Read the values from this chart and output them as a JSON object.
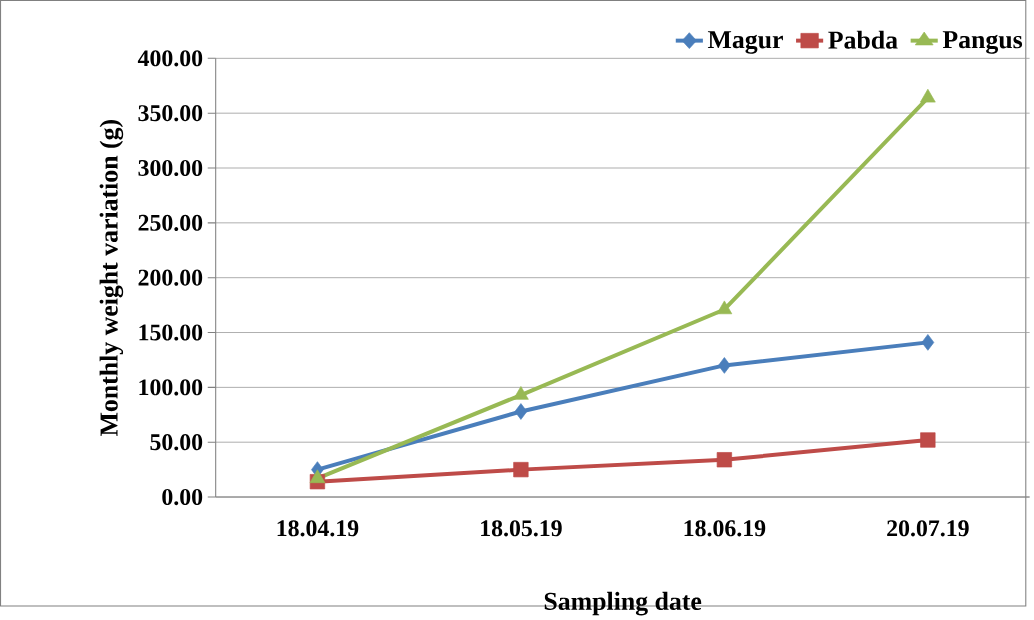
{
  "chart_data": {
    "type": "line",
    "xlabel": "Sampling date",
    "ylabel": "Monthly weight variation (g)",
    "categories": [
      "18.04.19",
      "18.05.19",
      "18.06.19",
      "20.07.19"
    ],
    "series": [
      {
        "name": "Magur",
        "color": "#4a7ebb",
        "marker": "diamond",
        "values": [
          25,
          78,
          120,
          141
        ]
      },
      {
        "name": "Pabda",
        "color": "#be4b48",
        "marker": "square",
        "values": [
          14,
          25,
          34,
          52
        ]
      },
      {
        "name": "Pangus",
        "color": "#98b954",
        "marker": "triangle",
        "values": [
          17,
          93,
          171,
          364
        ]
      }
    ],
    "ylim": [
      0,
      400
    ],
    "yticks": [
      {
        "value": 0,
        "label": "0.00"
      },
      {
        "value": 50,
        "label": "50.00"
      },
      {
        "value": 100,
        "label": "100.00"
      },
      {
        "value": 150,
        "label": "150.00"
      },
      {
        "value": 200,
        "label": "200.00"
      },
      {
        "value": 250,
        "label": "250.00"
      },
      {
        "value": 300,
        "label": "300.00"
      },
      {
        "value": 350,
        "label": "350.00"
      },
      {
        "value": 400,
        "label": "400.00"
      }
    ],
    "grid": "y",
    "legend": "top right",
    "line_style": "solid"
  }
}
